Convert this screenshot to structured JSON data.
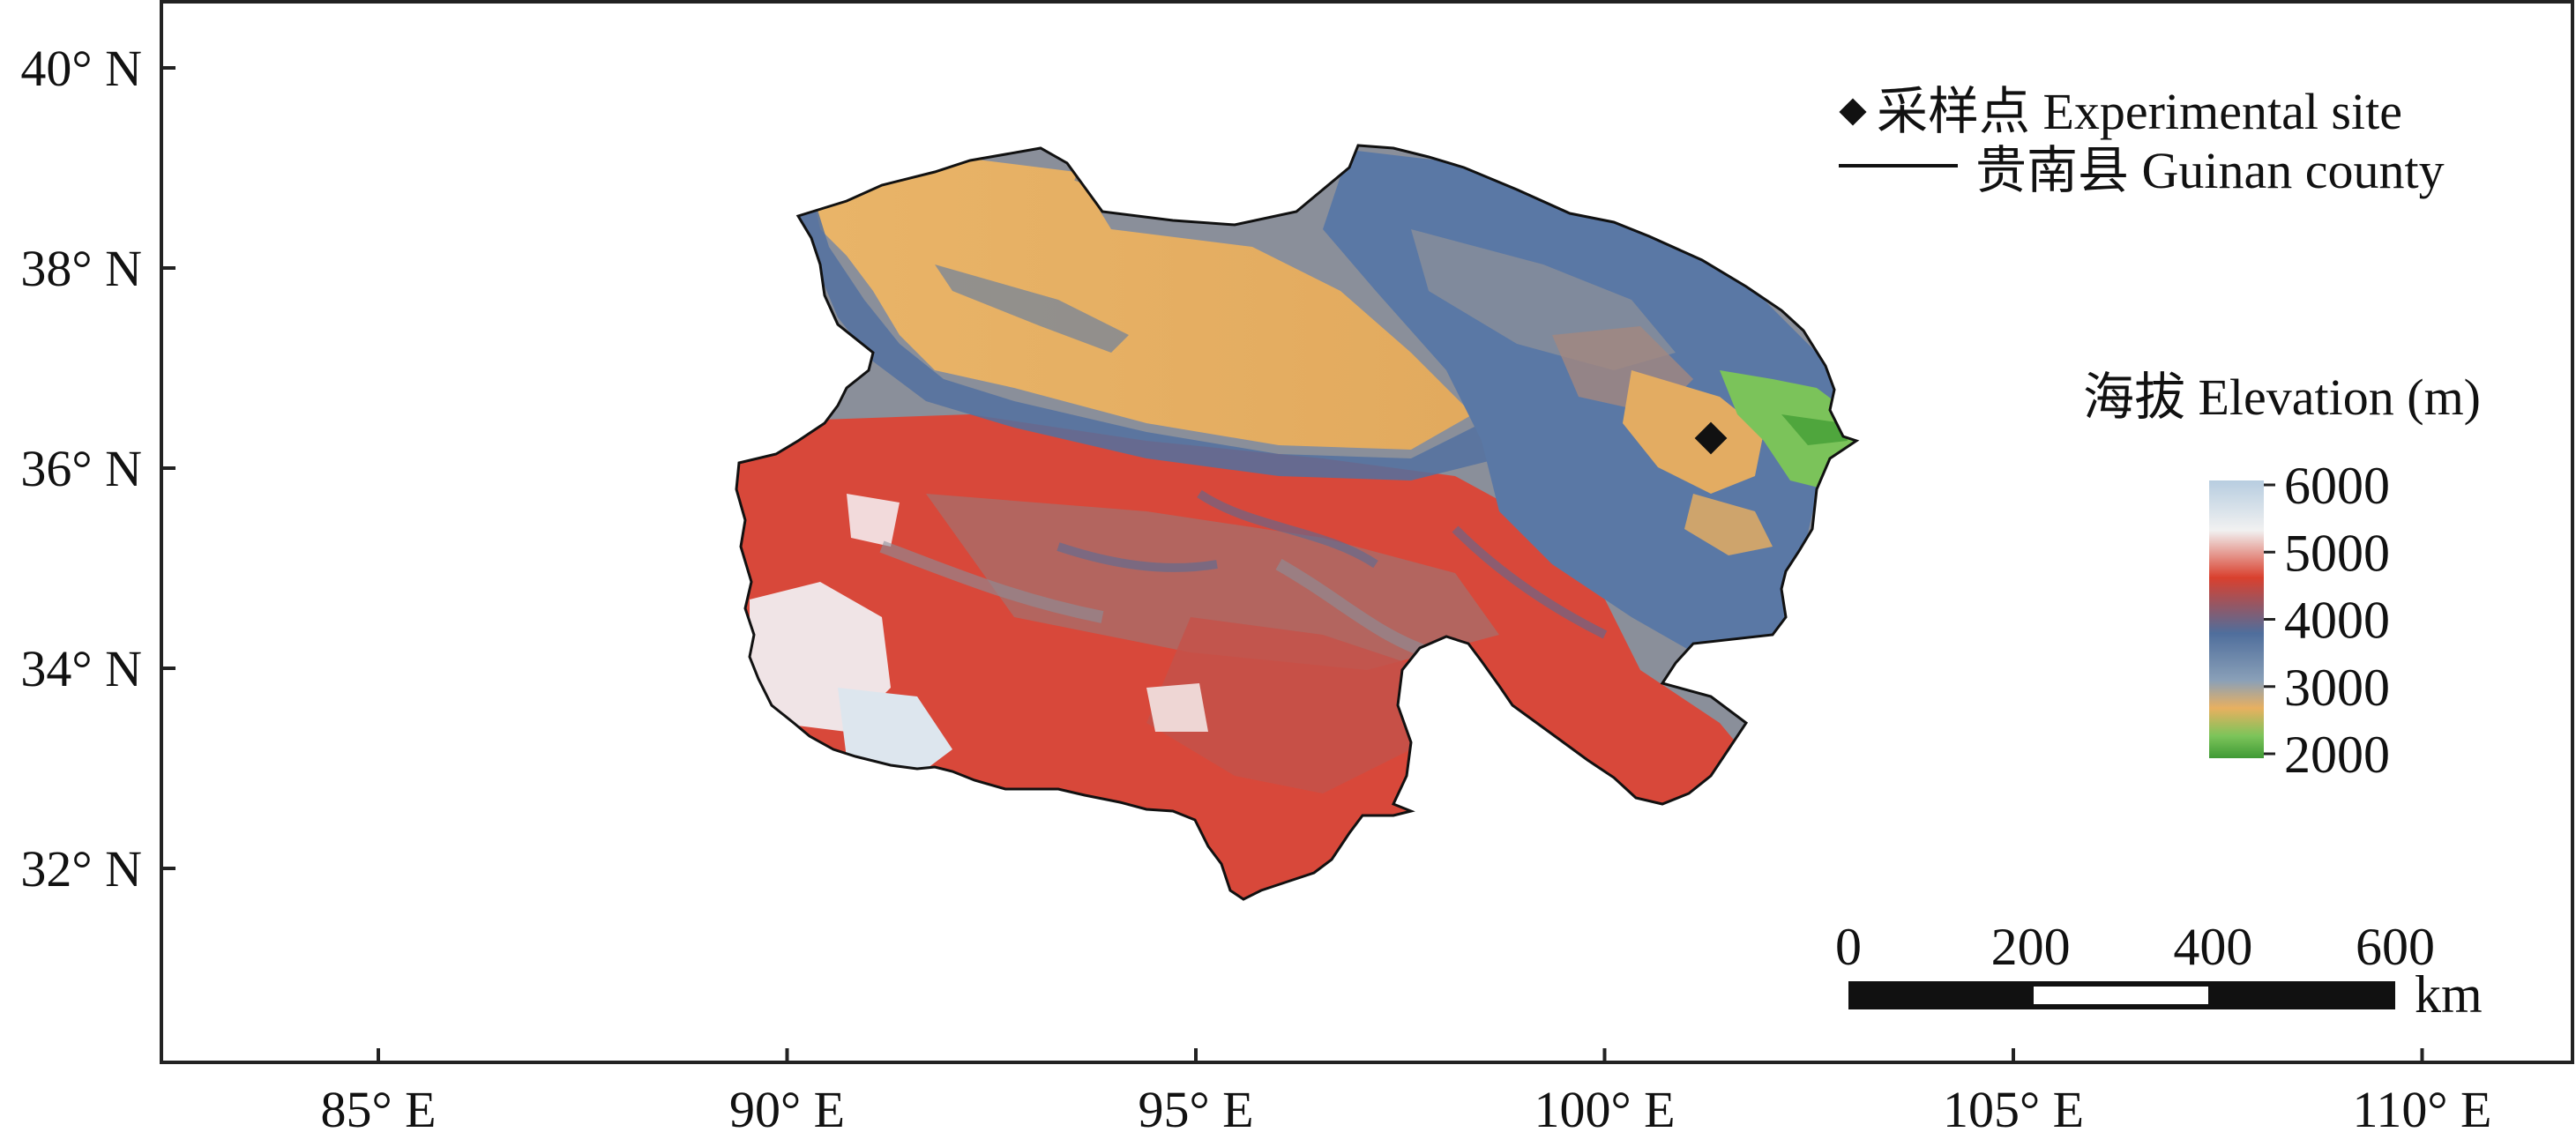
{
  "map": {
    "y_axis": {
      "ticks": [
        {
          "label": "40° N",
          "lat": 40
        },
        {
          "label": "38° N",
          "lat": 38
        },
        {
          "label": "36° N",
          "lat": 36
        },
        {
          "label": "34° N",
          "lat": 34
        },
        {
          "label": "32° N",
          "lat": 32
        }
      ]
    },
    "x_axis": {
      "ticks": [
        {
          "label": "85° E",
          "lon": 85
        },
        {
          "label": "90° E",
          "lon": 90
        },
        {
          "label": "95° E",
          "lon": 95
        },
        {
          "label": "100° E",
          "lon": 100
        },
        {
          "label": "105° E",
          "lon": 105
        },
        {
          "label": "110° E",
          "lon": 110
        }
      ]
    },
    "legend": {
      "site_label": "采样点 Experimental site",
      "county_label": "贵南县 Guinan county"
    },
    "colorbar": {
      "title": "海拔 Elevation (m)",
      "ticks": [
        "6000",
        "5000",
        "4000",
        "3000",
        "2000"
      ],
      "colors": [
        "#dfe8f0",
        "#d9402e",
        "#4f6e9c",
        "#e8b060",
        "#3f9a35"
      ]
    },
    "scalebar": {
      "ticks": [
        "0",
        "200",
        "400",
        "600"
      ],
      "unit": "km"
    },
    "site": {
      "lon": 101.3,
      "lat": 36.3
    }
  }
}
